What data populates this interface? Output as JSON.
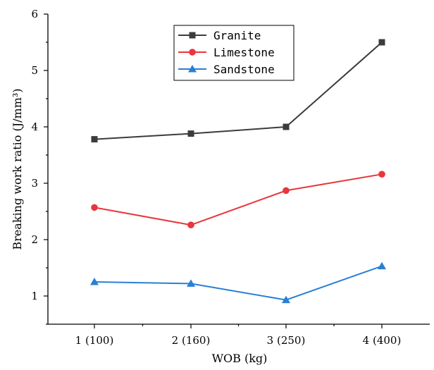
{
  "chart_data": {
    "type": "line",
    "categories": [
      "1 (100)",
      "2 (160)",
      "3 (250)",
      "4 (400)"
    ],
    "xlabel": "WOB (kg)",
    "ylabel": "Breaking work ratio (J/mm³)",
    "ylim": [
      0.5,
      6
    ],
    "yticks": [
      "1",
      "2",
      "3",
      "4",
      "5",
      "6"
    ],
    "grid": false,
    "legend_position": "top-center",
    "series": [
      {
        "name": "Granite",
        "values": [
          3.78,
          3.88,
          4.0,
          5.5
        ],
        "color": "#3c3c3c",
        "marker": "square"
      },
      {
        "name": "Limestone",
        "values": [
          2.57,
          2.26,
          2.87,
          3.16
        ],
        "color": "#e8363b",
        "marker": "circle"
      },
      {
        "name": "Sandstone",
        "values": [
          1.25,
          1.22,
          0.93,
          1.53
        ],
        "color": "#2a7fd4",
        "marker": "triangle"
      }
    ]
  }
}
